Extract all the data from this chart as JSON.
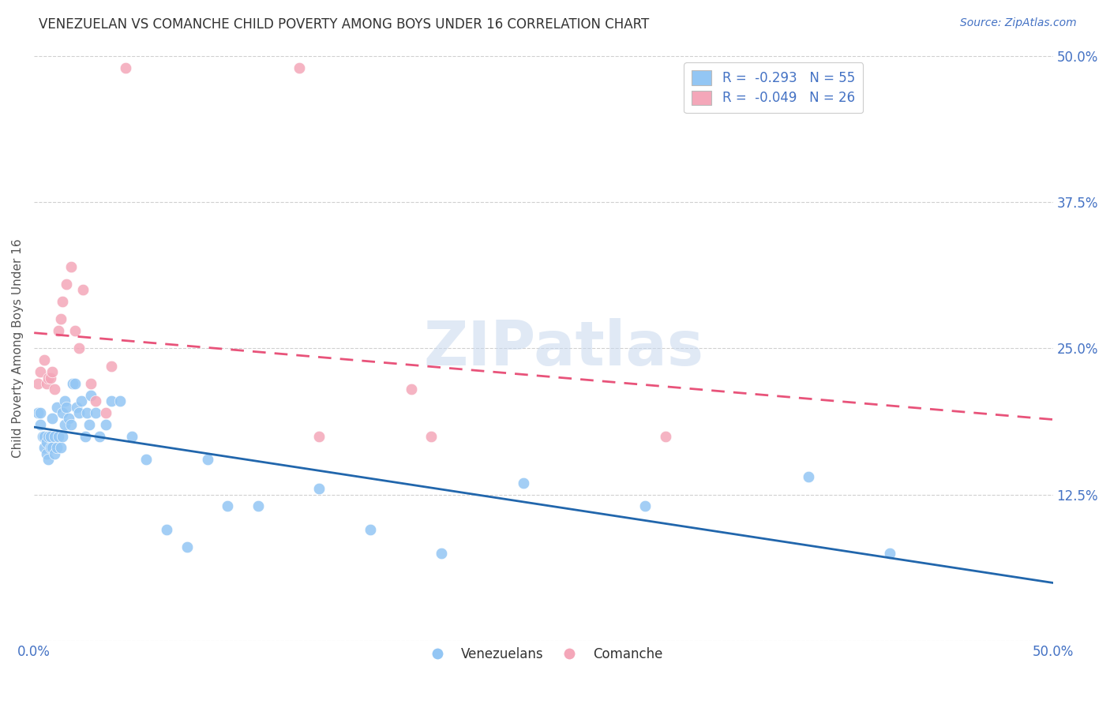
{
  "title": "VENEZUELAN VS COMANCHE CHILD POVERTY AMONG BOYS UNDER 16 CORRELATION CHART",
  "source": "Source: ZipAtlas.com",
  "ylabel": "Child Poverty Among Boys Under 16",
  "xlim": [
    0.0,
    0.5
  ],
  "ylim": [
    0.0,
    0.5
  ],
  "xtick_pos": [
    0.0,
    0.125,
    0.25,
    0.375,
    0.5
  ],
  "ytick_pos": [
    0.0,
    0.125,
    0.25,
    0.375,
    0.5
  ],
  "xtick_labels": [
    "0.0%",
    "",
    "",
    "",
    "50.0%"
  ],
  "ytick_labels_right": [
    "",
    "12.5%",
    "25.0%",
    "37.5%",
    "50.0%"
  ],
  "watermark": "ZIPatlas",
  "legend_line1": "R =  -0.293   N = 55",
  "legend_line2": "R =  -0.049   N = 26",
  "venezuelan_color": "#93c6f4",
  "comanche_color": "#f4a7b9",
  "venezuelan_line_color": "#2166ac",
  "comanche_line_color": "#e8537a",
  "venezuelan_x": [
    0.002,
    0.003,
    0.003,
    0.004,
    0.005,
    0.005,
    0.006,
    0.006,
    0.007,
    0.007,
    0.008,
    0.008,
    0.009,
    0.009,
    0.01,
    0.01,
    0.011,
    0.011,
    0.012,
    0.013,
    0.014,
    0.014,
    0.015,
    0.015,
    0.016,
    0.017,
    0.018,
    0.019,
    0.02,
    0.021,
    0.022,
    0.023,
    0.025,
    0.026,
    0.027,
    0.028,
    0.03,
    0.032,
    0.035,
    0.038,
    0.042,
    0.048,
    0.055,
    0.065,
    0.075,
    0.085,
    0.095,
    0.11,
    0.14,
    0.165,
    0.2,
    0.24,
    0.3,
    0.38,
    0.42
  ],
  "venezuelan_y": [
    0.195,
    0.185,
    0.195,
    0.175,
    0.165,
    0.175,
    0.16,
    0.17,
    0.155,
    0.175,
    0.165,
    0.175,
    0.165,
    0.19,
    0.16,
    0.175,
    0.165,
    0.2,
    0.175,
    0.165,
    0.175,
    0.195,
    0.185,
    0.205,
    0.2,
    0.19,
    0.185,
    0.22,
    0.22,
    0.2,
    0.195,
    0.205,
    0.175,
    0.195,
    0.185,
    0.21,
    0.195,
    0.175,
    0.185,
    0.205,
    0.205,
    0.175,
    0.155,
    0.095,
    0.08,
    0.155,
    0.115,
    0.115,
    0.13,
    0.095,
    0.075,
    0.135,
    0.115,
    0.14,
    0.075
  ],
  "comanche_x": [
    0.002,
    0.003,
    0.005,
    0.006,
    0.007,
    0.008,
    0.009,
    0.01,
    0.012,
    0.013,
    0.014,
    0.016,
    0.018,
    0.02,
    0.022,
    0.024,
    0.028,
    0.03,
    0.035,
    0.038,
    0.045,
    0.13,
    0.14,
    0.185,
    0.195,
    0.31
  ],
  "comanche_y": [
    0.22,
    0.23,
    0.24,
    0.22,
    0.225,
    0.225,
    0.23,
    0.215,
    0.265,
    0.275,
    0.29,
    0.305,
    0.32,
    0.265,
    0.25,
    0.3,
    0.22,
    0.205,
    0.195,
    0.235,
    0.49,
    0.49,
    0.175,
    0.215,
    0.175,
    0.175
  ]
}
